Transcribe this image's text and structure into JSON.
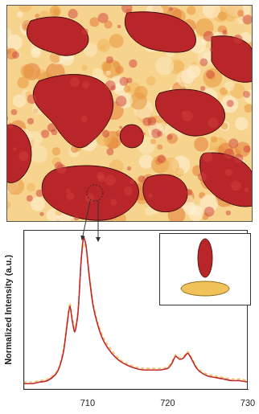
{
  "chart_data": {
    "type": "line",
    "y_label": "Normalized Intensity (a.u.)",
    "x": [
      702,
      703,
      704,
      705,
      706,
      706.5,
      707,
      707.5,
      707.8,
      708.1,
      708.4,
      708.8,
      709.2,
      709.5,
      709.8,
      710.2,
      710.7,
      711.3,
      712,
      713,
      714,
      715,
      716,
      717,
      718,
      719,
      720,
      720.5,
      721,
      721.5,
      722,
      722.5,
      723,
      723.5,
      724,
      725,
      726,
      727,
      728,
      729,
      730
    ],
    "series": [
      {
        "color": "#c0282d",
        "line_style": "solid",
        "values": [
          0.04,
          0.04,
          0.05,
          0.06,
          0.1,
          0.15,
          0.25,
          0.45,
          0.55,
          0.45,
          0.38,
          0.5,
          0.85,
          1.0,
          0.95,
          0.75,
          0.55,
          0.42,
          0.32,
          0.24,
          0.19,
          0.16,
          0.14,
          0.13,
          0.13,
          0.13,
          0.14,
          0.17,
          0.22,
          0.2,
          0.21,
          0.24,
          0.2,
          0.15,
          0.12,
          0.09,
          0.08,
          0.07,
          0.06,
          0.06,
          0.05
        ]
      },
      {
        "color": "#f2c25a",
        "line_style": "dashed",
        "values": [
          0.05,
          0.05,
          0.06,
          0.07,
          0.11,
          0.16,
          0.27,
          0.47,
          0.57,
          0.48,
          0.4,
          0.52,
          0.84,
          0.96,
          0.93,
          0.76,
          0.57,
          0.44,
          0.34,
          0.26,
          0.2,
          0.17,
          0.15,
          0.14,
          0.14,
          0.14,
          0.15,
          0.18,
          0.23,
          0.21,
          0.22,
          0.25,
          0.21,
          0.16,
          0.13,
          0.1,
          0.09,
          0.08,
          0.07,
          0.07,
          0.06
        ]
      }
    ],
    "xlim": [
      702,
      730
    ],
    "xticks": [
      710,
      720,
      730
    ],
    "ylim": [
      0,
      1.05
    ],
    "yticks": [],
    "tick_labels": "x",
    "grid": false
  }
}
